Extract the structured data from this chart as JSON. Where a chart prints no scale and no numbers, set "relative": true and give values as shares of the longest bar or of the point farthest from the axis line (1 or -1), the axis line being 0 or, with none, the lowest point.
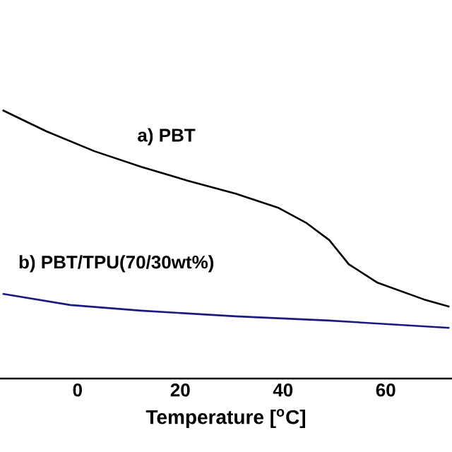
{
  "chart_data": {
    "type": "line",
    "xlabel": "Temperature [$^{o}$C]",
    "relative": true,
    "xlim": [
      -15.1,
      72.9
    ],
    "xticks": [
      0,
      20,
      40,
      60
    ],
    "grid": false,
    "series": [
      {
        "name": "a) PBT",
        "color": "#000000",
        "x": [
          -14.6,
          -6.05,
          3.3,
          12.4,
          21.5,
          30.8,
          39.0,
          44.6,
          49.0,
          52.8,
          58.3,
          67.4,
          72.4
        ],
        "values": [
          1.0,
          0.921,
          0.847,
          0.789,
          0.737,
          0.689,
          0.637,
          0.579,
          0.516,
          0.426,
          0.358,
          0.295,
          0.268
        ]
      },
      {
        "name": "b) PBT/TPU(70/30wt%)",
        "color": "#1a1a80",
        "x": [
          -14.6,
          -1.4,
          12.4,
          30.8,
          49.0,
          72.4
        ],
        "values": [
          0.316,
          0.274,
          0.253,
          0.232,
          0.216,
          0.189
        ]
      }
    ]
  }
}
